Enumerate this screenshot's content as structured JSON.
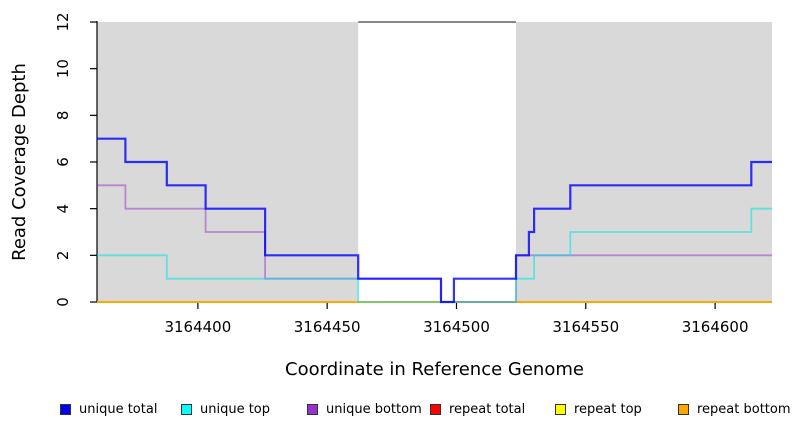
{
  "chart_data": {
    "type": "line",
    "step": true,
    "title": "",
    "xlabel": "Coordinate in Reference Genome",
    "ylabel": "Read Coverage Depth",
    "xlim": [
      3164361,
      3164622
    ],
    "ylim": [
      0,
      12
    ],
    "grid": false,
    "legend_position": "bottom-horizontal",
    "x_ticks": [
      {
        "value": 3164400,
        "label": "3164400"
      },
      {
        "value": 3164450,
        "label": "3164450"
      },
      {
        "value": 3164500,
        "label": "3164500"
      },
      {
        "value": 3164550,
        "label": "3164550"
      },
      {
        "value": 3164600,
        "label": "3164600"
      }
    ],
    "y_ticks": [
      {
        "value": 0,
        "label": "0"
      },
      {
        "value": 2,
        "label": "2"
      },
      {
        "value": 4,
        "label": "4"
      },
      {
        "value": 6,
        "label": "6"
      },
      {
        "value": 8,
        "label": "8"
      },
      {
        "value": 10,
        "label": "10"
      },
      {
        "value": 12,
        "label": "12"
      }
    ],
    "background_shading": {
      "color": "#d9d9d9",
      "regions": [
        {
          "x1": 3164361,
          "x2": 3164462
        },
        {
          "x1": 3164523,
          "x2": 3164622
        }
      ]
    },
    "gap_marker": {
      "x1": 3164462,
      "x2": 3164523,
      "y": 12,
      "color": "#878787"
    },
    "series": [
      {
        "name": "repeat total",
        "color": "#ff0000",
        "opacity": 0.9,
        "width": 1.6,
        "points": [
          [
            3164361,
            0
          ]
        ]
      },
      {
        "name": "repeat top",
        "color": "#ffff00",
        "opacity": 0.9,
        "width": 1.6,
        "points": [
          [
            3164361,
            0
          ]
        ]
      },
      {
        "name": "repeat bottom",
        "color": "#ffa500",
        "opacity": 0.95,
        "width": 2,
        "points": [
          [
            3164361,
            0
          ]
        ]
      },
      {
        "name": "unique bottom",
        "color": "#9932cc",
        "opacity": 0.5,
        "width": 1.8,
        "points": [
          [
            3164361,
            5
          ],
          [
            3164372,
            4
          ],
          [
            3164403,
            3
          ],
          [
            3164426,
            1
          ],
          [
            3164494,
            0
          ],
          [
            3164523,
            2
          ]
        ]
      },
      {
        "name": "unique top",
        "color": "#00e5e5",
        "opacity": 0.55,
        "width": 1.8,
        "points": [
          [
            3164361,
            2
          ],
          [
            3164388,
            1
          ],
          [
            3164462,
            0
          ],
          [
            3164523,
            1
          ],
          [
            3164530,
            2
          ],
          [
            3164544,
            3
          ],
          [
            3164614,
            4
          ]
        ]
      },
      {
        "name": "unique total",
        "color": "#0000ff",
        "opacity": 0.8,
        "width": 2.2,
        "points": [
          [
            3164361,
            7
          ],
          [
            3164372,
            6
          ],
          [
            3164388,
            5
          ],
          [
            3164403,
            4
          ],
          [
            3164426,
            2
          ],
          [
            3164462,
            1
          ],
          [
            3164494,
            0
          ],
          [
            3164499,
            1
          ],
          [
            3164523,
            2
          ],
          [
            3164528,
            3
          ],
          [
            3164530,
            4
          ],
          [
            3164544,
            5
          ],
          [
            3164614,
            6
          ]
        ]
      }
    ],
    "legend": [
      {
        "label": "unique total",
        "color": "#0000ee"
      },
      {
        "label": "unique top",
        "color": "#00ffff"
      },
      {
        "label": "unique bottom",
        "color": "#9932cc"
      },
      {
        "label": "repeat total",
        "color": "#ff0000"
      },
      {
        "label": "repeat top",
        "color": "#ffff00"
      },
      {
        "label": "repeat bottom",
        "color": "#ffa500"
      }
    ]
  }
}
